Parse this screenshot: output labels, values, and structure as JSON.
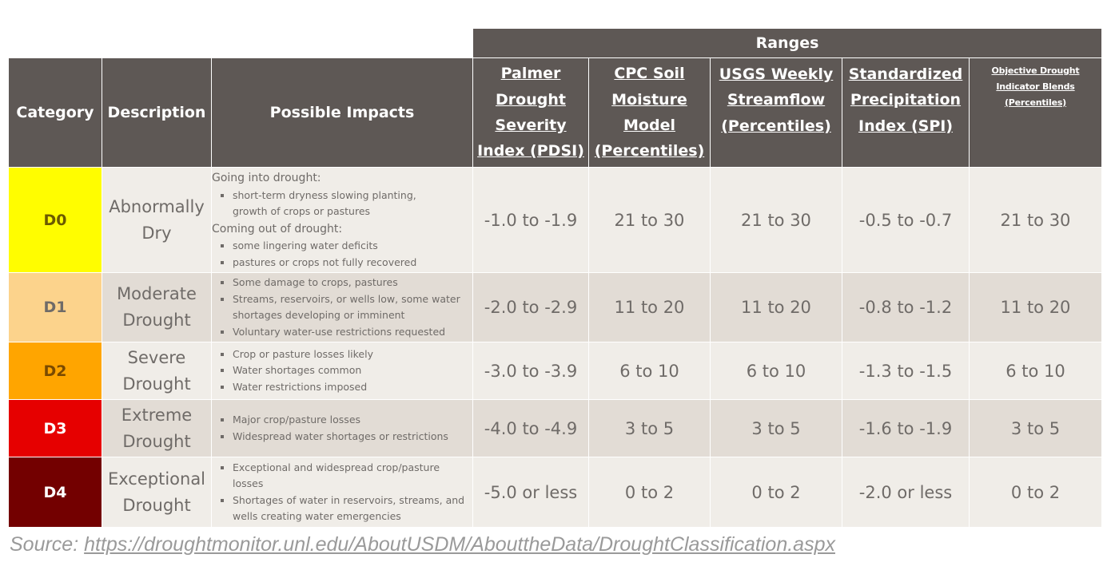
{
  "header": {
    "ranges": "Ranges",
    "category": "Category",
    "description": "Description",
    "impacts": "Possible Impacts",
    "pdsi": [
      "Palmer",
      "Drought",
      "Severity",
      "Index (PDSI)"
    ],
    "cpc": [
      "CPC Soil",
      "Moisture",
      "Model",
      "(Percentiles)"
    ],
    "usgs": [
      "USGS Weekly",
      "Streamflow",
      "(Percentiles)"
    ],
    "spi": [
      "Standardized",
      "Precipitation",
      "Index (SPI)"
    ],
    "blends": [
      "Objective Drought",
      "Indicator Blends",
      "(Percentiles)"
    ]
  },
  "rows": [
    {
      "category": "D0",
      "color": "#fffd00",
      "text_color": "#6b5a00",
      "description": [
        "Abnormally",
        "Dry"
      ],
      "impacts": {
        "going_into": "Going into drought:",
        "going_items": [
          "short-term dryness slowing planting,",
          "growth of crops or pastures"
        ],
        "coming_out": "Coming out of drought:",
        "coming_items": [
          "some lingering water deficits",
          "pastures or crops not fully recovered"
        ]
      },
      "pdsi": "-1.0 to -1.9",
      "cpc": "21 to 30",
      "usgs": "21 to 30",
      "spi": "-0.5 to -0.7",
      "blends": "21 to 30"
    },
    {
      "category": "D1",
      "color": "#fcd38c",
      "text_color": "#6f6b68",
      "description": [
        "Moderate",
        "Drought"
      ],
      "impacts": [
        "Some damage to crops, pastures",
        "Streams, reservoirs, or wells low, some water shortages developing or imminent",
        "Voluntary water-use restrictions requested"
      ],
      "pdsi": "-2.0 to -2.9",
      "cpc": "11 to 20",
      "usgs": "11 to 20",
      "spi": "-0.8 to -1.2",
      "blends": "11 to 20"
    },
    {
      "category": "D2",
      "color": "#ffa500",
      "text_color": "#7a4a00",
      "description": [
        "Severe",
        "Drought"
      ],
      "impacts": [
        "Crop or pasture losses likely",
        "Water shortages common",
        "Water restrictions imposed"
      ],
      "pdsi": "-3.0 to -3.9",
      "cpc": "6 to 10",
      "usgs": "6 to 10",
      "spi": "-1.3 to -1.5",
      "blends": "6 to 10"
    },
    {
      "category": "D3",
      "color": "#e60000",
      "text_color": "#ffffff",
      "description": [
        "Extreme",
        "Drought"
      ],
      "impacts": [
        "Major crop/pasture losses",
        "Widespread water shortages or restrictions"
      ],
      "pdsi": "-4.0 to -4.9",
      "cpc": "3 to 5",
      "usgs": "3 to 5",
      "spi": "-1.6 to -1.9",
      "blends": "3 to 5"
    },
    {
      "category": "D4",
      "color": "#730000",
      "text_color": "#ffffff",
      "description": [
        "Exceptional",
        "Drought"
      ],
      "impacts": [
        "Exceptional and widespread crop/pasture losses",
        "Shortages of water in reservoirs, streams, and wells creating water emergencies"
      ],
      "pdsi": "-5.0 or less",
      "cpc": "0 to 2",
      "usgs": "0 to 2",
      "spi": "-2.0 or less",
      "blends": "0 to 2"
    }
  ],
  "source": {
    "prefix": "Source: ",
    "url": "https://droughtmonitor.unl.edu/AboutUSDM/AbouttheData/DroughtClassification.aspx"
  }
}
